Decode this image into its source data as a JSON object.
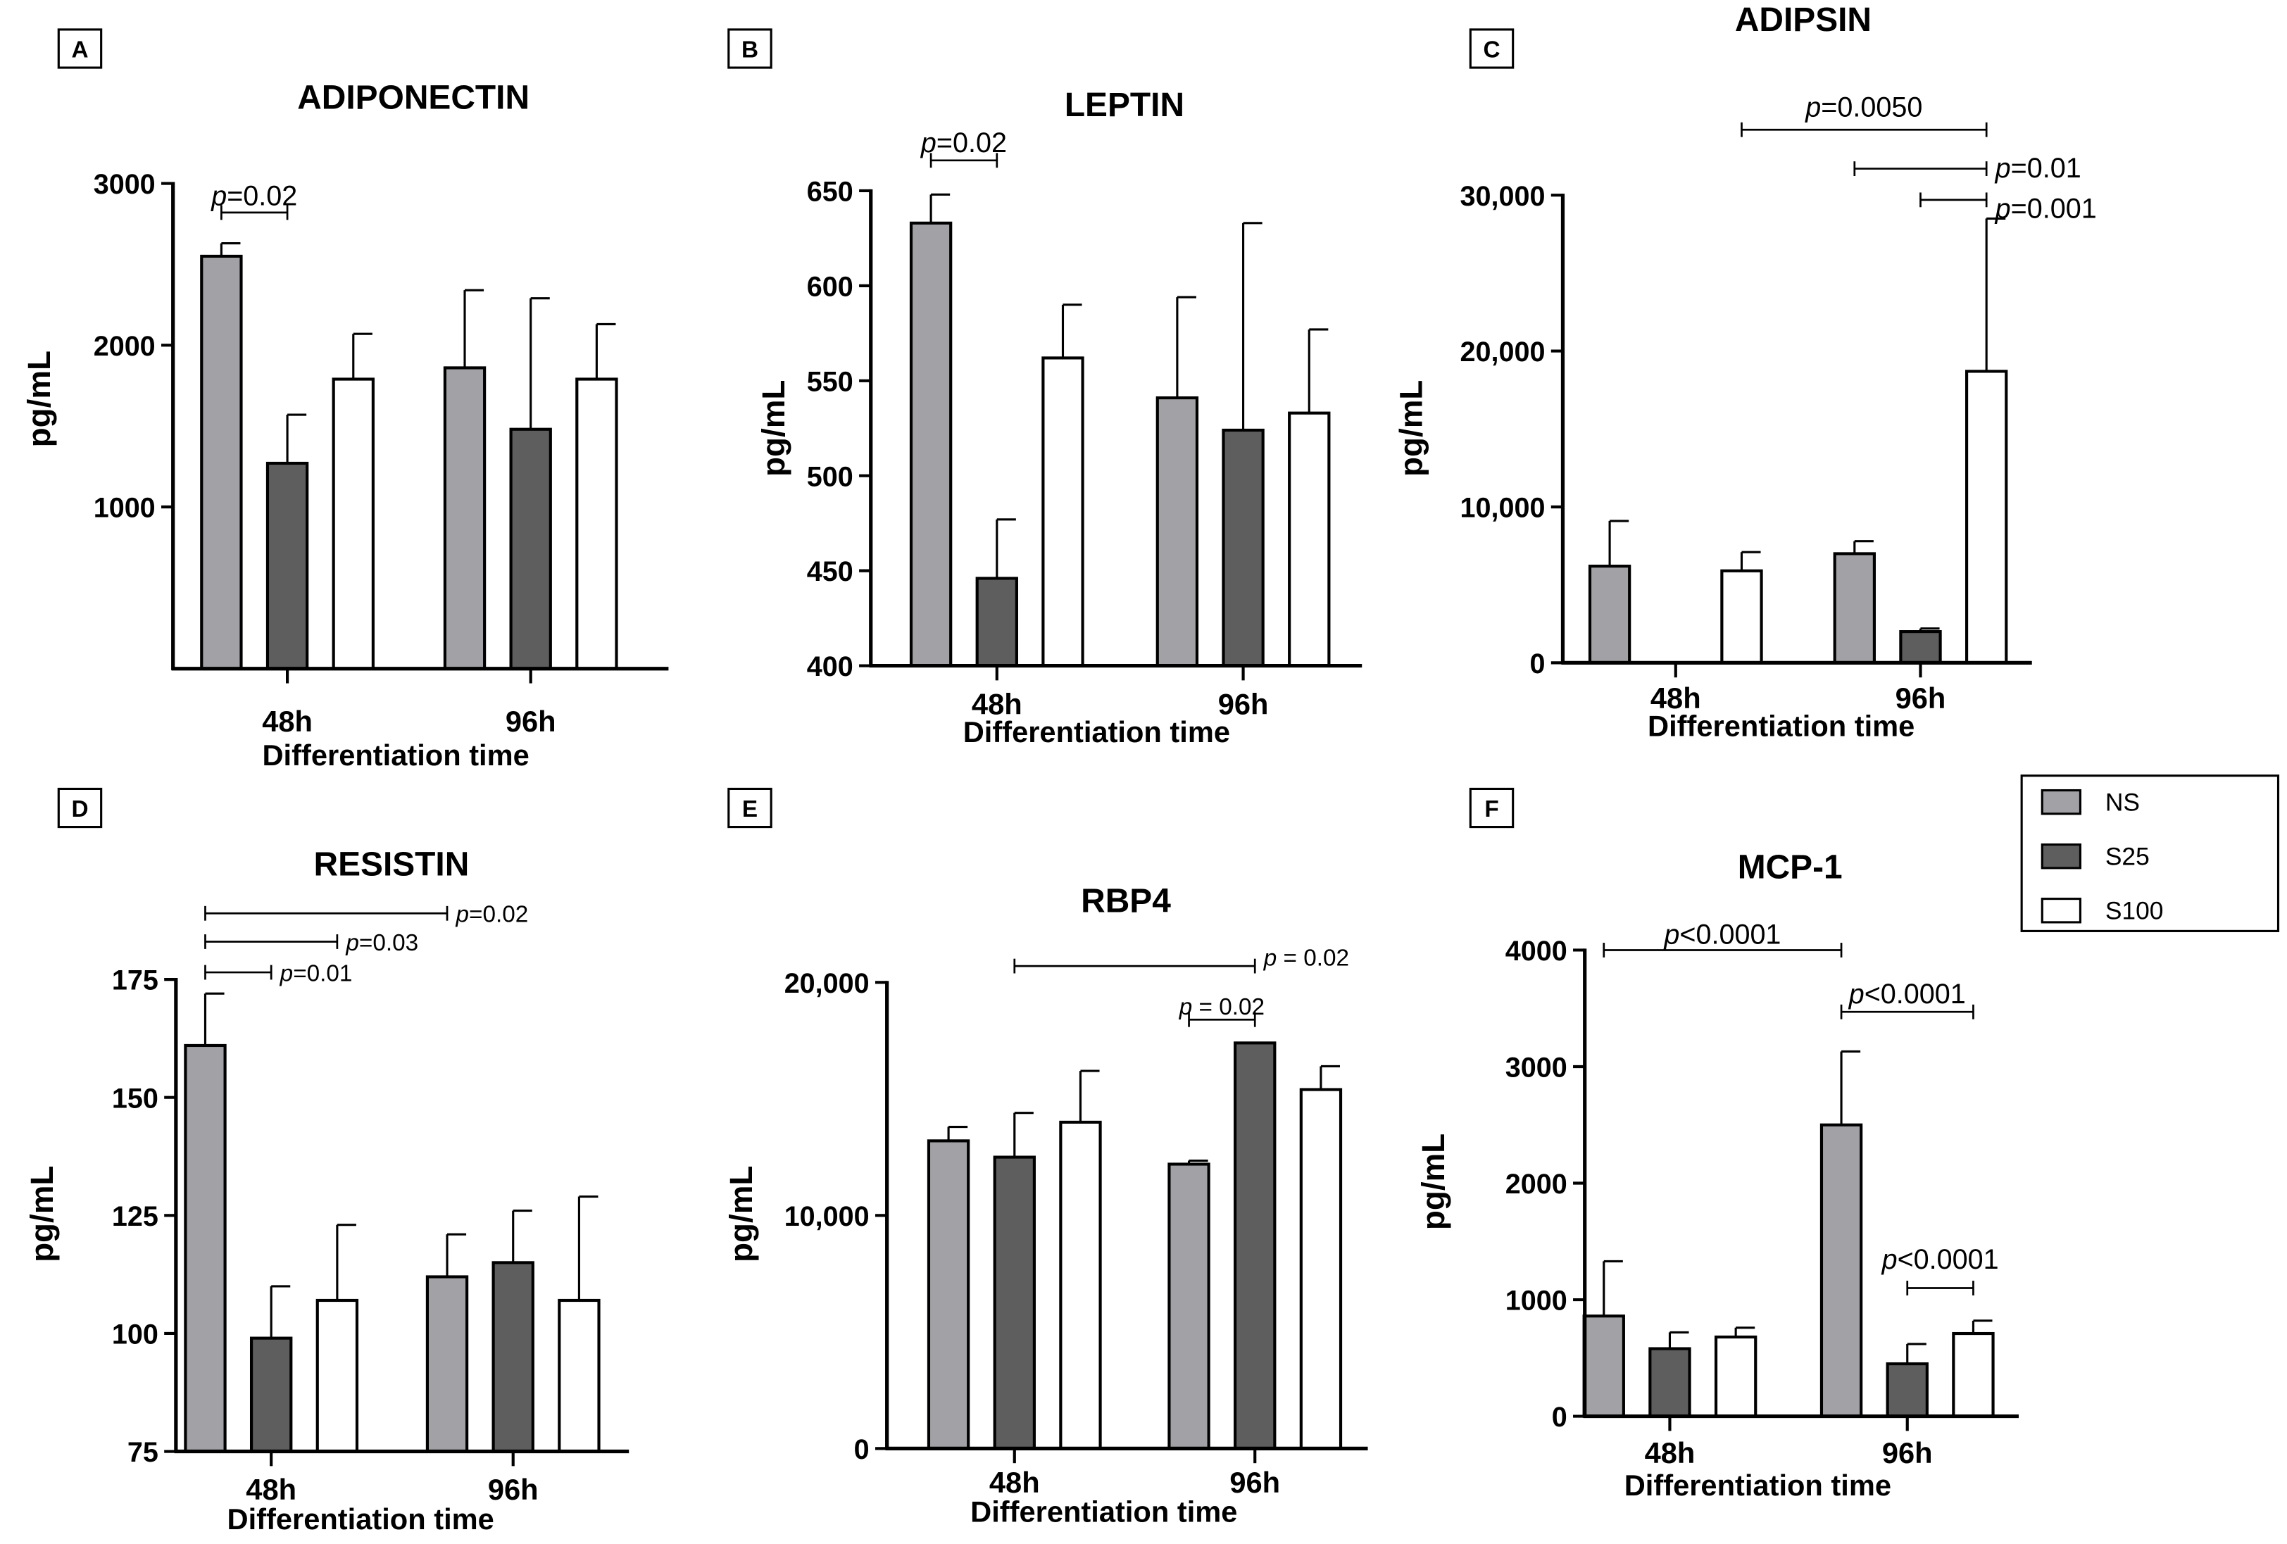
{
  "figure": {
    "xlabel": "Differentiation time",
    "ylabel": "pg/mL",
    "groups": [
      "48h",
      "96h"
    ],
    "legend": {
      "placement": "right, between top and bottom rows",
      "items": [
        {
          "label": "NS",
          "color": "#a2a2a6"
        },
        {
          "label": "S25",
          "color": "#5e5e5e"
        },
        {
          "label": "S100",
          "color": "#ffffff"
        }
      ]
    }
  },
  "chart_data": [
    {
      "panel": "A",
      "type": "bar",
      "title": "ADIPONECTIN",
      "xlabel": "Differentiation time",
      "ylabel": "pg/mL",
      "categories": [
        "48h",
        "96h"
      ],
      "ylim": [
        0,
        3000
      ],
      "yticks": [
        1000,
        2000,
        3000
      ],
      "ytick_labels": [
        "1000",
        "2000",
        "3000"
      ],
      "series": [
        {
          "name": "NS",
          "values": [
            2550,
            1860
          ],
          "errors": [
            80,
            480
          ]
        },
        {
          "name": "S25",
          "values": [
            1270,
            1480
          ],
          "errors": [
            300,
            810
          ]
        },
        {
          "name": "S100",
          "values": [
            1790,
            1790
          ],
          "errors": [
            280,
            340
          ]
        }
      ],
      "annotations": [
        {
          "label": "=0.02",
          "from": [
            0,
            0
          ],
          "to": [
            0,
            1
          ],
          "y": 2820,
          "label_y": 2920
        }
      ]
    },
    {
      "panel": "B",
      "type": "bar",
      "title": "LEPTIN",
      "xlabel": "Differentiation time",
      "ylabel": "pg/mL",
      "categories": [
        "48h",
        "96h"
      ],
      "ylim": [
        400,
        650
      ],
      "yticks": [
        400,
        450,
        500,
        550,
        600,
        650
      ],
      "ytick_labels": [
        "400",
        "450",
        "500",
        "550",
        "600",
        "650"
      ],
      "series": [
        {
          "name": "NS",
          "values": [
            633,
            541
          ],
          "errors": [
            15,
            53
          ]
        },
        {
          "name": "S25",
          "values": [
            446,
            524
          ],
          "errors": [
            31,
            109
          ]
        },
        {
          "name": "S100",
          "values": [
            562,
            533
          ],
          "errors": [
            28,
            44
          ]
        }
      ],
      "annotations": [
        {
          "label": "=0.02",
          "from": [
            0,
            0
          ],
          "to": [
            0,
            1
          ],
          "y": 666,
          "label_y": 675
        }
      ]
    },
    {
      "panel": "C",
      "type": "bar",
      "title": "ADIPSIN",
      "xlabel": "Differentiation time",
      "ylabel": "pg/mL",
      "categories": [
        "48h",
        "96h"
      ],
      "ylim": [
        0,
        30000
      ],
      "yticks": [
        0,
        10000,
        20000,
        30000
      ],
      "ytick_labels": [
        "0",
        "10,000",
        "20,000",
        "30,000"
      ],
      "series": [
        {
          "name": "NS",
          "values": [
            6200,
            7000
          ],
          "errors": [
            2900,
            800
          ]
        },
        {
          "name": "S25",
          "values": [
            0,
            2000
          ],
          "errors": [
            0,
            200
          ]
        },
        {
          "name": "S100",
          "values": [
            5900,
            18700
          ],
          "errors": [
            1200,
            9800
          ]
        }
      ],
      "annotations": [
        {
          "label": "=0.0050",
          "from": [
            0,
            2
          ],
          "to": [
            1,
            2
          ],
          "y": 34200,
          "label_y": 35600
        },
        {
          "label": "=0.01",
          "from": [
            1,
            0
          ],
          "to": [
            1,
            2
          ],
          "y": 31700,
          "label_y": 31700
        },
        {
          "label": "=0.001",
          "from": [
            1,
            1
          ],
          "to": [
            1,
            2
          ],
          "y": 29700,
          "label_y": 29100
        }
      ]
    },
    {
      "panel": "D",
      "type": "bar",
      "title": "RESISTIN",
      "xlabel": "Differentiation time",
      "ylabel": "pg/mL",
      "categories": [
        "48h",
        "96h"
      ],
      "ylim": [
        75,
        175
      ],
      "yticks": [
        75,
        100,
        125,
        150,
        175
      ],
      "ytick_labels": [
        "75",
        "100",
        "125",
        "150",
        "175"
      ],
      "series": [
        {
          "name": "NS",
          "values": [
            161,
            112
          ],
          "errors": [
            11,
            9
          ]
        },
        {
          "name": "S25",
          "values": [
            99,
            115
          ],
          "errors": [
            11,
            11
          ]
        },
        {
          "name": "S100",
          "values": [
            107,
            107
          ],
          "errors": [
            16,
            22
          ]
        }
      ],
      "annotations": [
        {
          "label": "=0.02",
          "from": [
            0,
            0
          ],
          "to": [
            1,
            0
          ],
          "y": 189,
          "label_y": 189
        },
        {
          "label": "=0.03",
          "from": [
            0,
            0
          ],
          "to": [
            0,
            2
          ],
          "y": 183,
          "label_y": 183
        },
        {
          "label": "=0.01",
          "from": [
            0,
            0
          ],
          "to": [
            0,
            1
          ],
          "y": 176.5,
          "label_y": 176.5
        }
      ]
    },
    {
      "panel": "E",
      "type": "bar",
      "title": "RBP4",
      "xlabel": "Differentiation time",
      "ylabel": "pg/mL",
      "categories": [
        "48h",
        "96h"
      ],
      "ylim": [
        0,
        20000
      ],
      "yticks": [
        0,
        10000,
        20000
      ],
      "ytick_labels": [
        "0",
        "10,000",
        "20,000"
      ],
      "series": [
        {
          "name": "NS",
          "values": [
            13200,
            12200
          ],
          "errors": [
            600,
            150
          ]
        },
        {
          "name": "S25",
          "values": [
            12500,
            17400
          ],
          "errors": [
            1900,
            0
          ]
        },
        {
          "name": "S100",
          "values": [
            14000,
            15400
          ],
          "errors": [
            2200,
            1000
          ]
        }
      ],
      "annotations": [
        {
          "label": " = 0.02",
          "from": [
            0,
            1
          ],
          "to": [
            1,
            1
          ],
          "y": 20700,
          "label_y": 21100
        },
        {
          "label": " = 0.02",
          "from": [
            1,
            0
          ],
          "to": [
            1,
            1
          ],
          "y": 18400,
          "label_y": 19000
        }
      ]
    },
    {
      "panel": "F",
      "type": "bar",
      "title": "MCP-1",
      "xlabel": "Differentiation time",
      "ylabel": "pg/mL",
      "categories": [
        "48h",
        "96h"
      ],
      "ylim": [
        0,
        4000
      ],
      "yticks": [
        0,
        1000,
        2000,
        3000,
        4000
      ],
      "ytick_labels": [
        "0",
        "1000",
        "2000",
        "3000",
        "4000"
      ],
      "series": [
        {
          "name": "NS",
          "values": [
            860,
            2500
          ],
          "errors": [
            470,
            630
          ]
        },
        {
          "name": "S25",
          "values": [
            580,
            450
          ],
          "errors": [
            140,
            170
          ]
        },
        {
          "name": "S100",
          "values": [
            680,
            710
          ],
          "errors": [
            80,
            110
          ]
        }
      ],
      "annotations": [
        {
          "label": "<0.0001",
          "from": [
            0,
            0
          ],
          "to": [
            1,
            0
          ],
          "y": 4000,
          "label_y": 4130
        },
        {
          "label": "<0.0001",
          "from": [
            1,
            0
          ],
          "to": [
            1,
            2
          ],
          "y": 3470,
          "label_y": 3620
        },
        {
          "label": "<0.0001",
          "from": [
            1,
            1
          ],
          "to": [
            1,
            2
          ],
          "y": 1100,
          "label_y": 1340
        }
      ]
    }
  ]
}
